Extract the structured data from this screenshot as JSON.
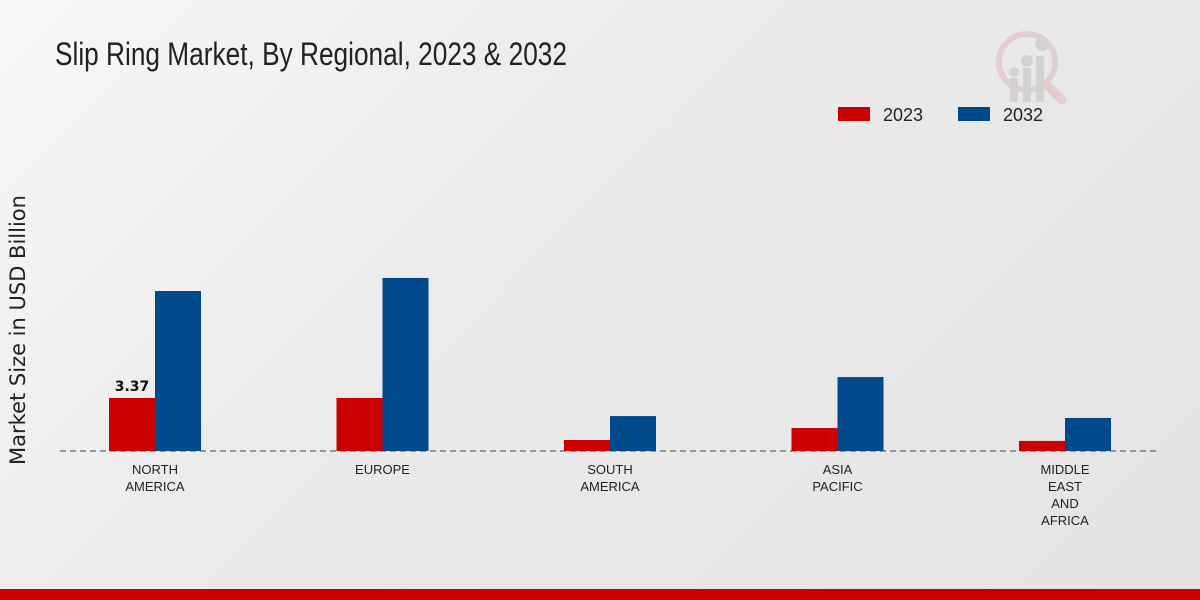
{
  "chart_data": {
    "type": "bar",
    "title": "Slip Ring Market, By Regional, 2023 & 2032",
    "xlabel": "",
    "ylabel": "Market Size in USD Billion",
    "categories": [
      [
        "NORTH",
        "AMERICA"
      ],
      [
        "EUROPE"
      ],
      [
        "SOUTH",
        "AMERICA"
      ],
      [
        "ASIA",
        "PACIFIC"
      ],
      [
        "MIDDLE",
        "EAST",
        "AND",
        "AFRICA"
      ]
    ],
    "series": [
      {
        "name": "2023",
        "color": "#cc0000",
        "values": [
          3.37,
          3.37,
          0.7,
          1.46,
          0.64
        ]
      },
      {
        "name": "2032",
        "color": "#004a8c",
        "values": [
          10.17,
          11.0,
          2.22,
          4.7,
          2.1
        ]
      }
    ],
    "data_labels": [
      {
        "series": 0,
        "index": 0,
        "text": "3.37"
      }
    ],
    "legend_position": "top-right",
    "grid": false
  }
}
